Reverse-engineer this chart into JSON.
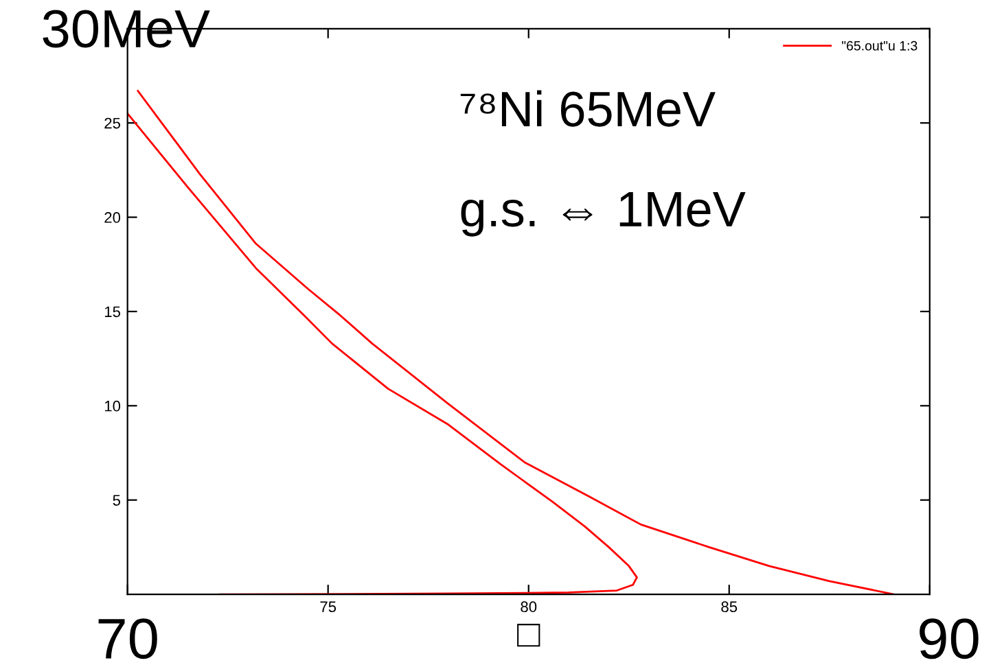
{
  "chart_data": {
    "type": "line",
    "xlabel": "□",
    "annotations": [
      "⁷⁸Ni 65MeV",
      "g.s. ⇔ 1MeV",
      "30MeV",
      "70",
      "90"
    ],
    "x": [
      70,
      71.5,
      73.2,
      74.4,
      75.1,
      76.5,
      78.0,
      79.3,
      80.6,
      81.4,
      82.0,
      82.5,
      82.7,
      82.6,
      82.2,
      81.0,
      79.9,
      78.0,
      76.4,
      74.0,
      72.3,
      null,
      70.26,
      71.8,
      73.2,
      74.5,
      75.3,
      76.1,
      78.0,
      79.9,
      81.5,
      82.8,
      84.5,
      86.0,
      87.5,
      89.1
    ],
    "series": [
      {
        "name": "\"65.out\"u 1:3",
        "color": "#ff0000",
        "values": [
          25.5,
          21.6,
          17.3,
          14.8,
          13.3,
          10.9,
          9.0,
          6.9,
          4.9,
          3.6,
          2.5,
          1.5,
          0.9,
          0.5,
          0.2,
          0.1,
          0.07,
          0.04,
          0.02,
          0.01,
          0,
          null,
          26.7,
          22.3,
          18.6,
          16.2,
          14.8,
          13.3,
          10.1,
          7.0,
          5.2,
          3.7,
          2.5,
          1.5,
          0.7,
          0
        ]
      }
    ],
    "xlim": [
      70,
      90
    ],
    "ylim": [
      0,
      30
    ],
    "xticks": [
      {
        "value": 70,
        "label": null
      },
      75,
      80,
      85,
      {
        "value": 90,
        "label": null
      }
    ],
    "yticks": [
      5,
      10,
      15,
      20,
      25,
      {
        "value": 30,
        "label": null
      }
    ],
    "grid": false,
    "legend": "top right",
    "marker": "none",
    "line_style": "solid"
  }
}
